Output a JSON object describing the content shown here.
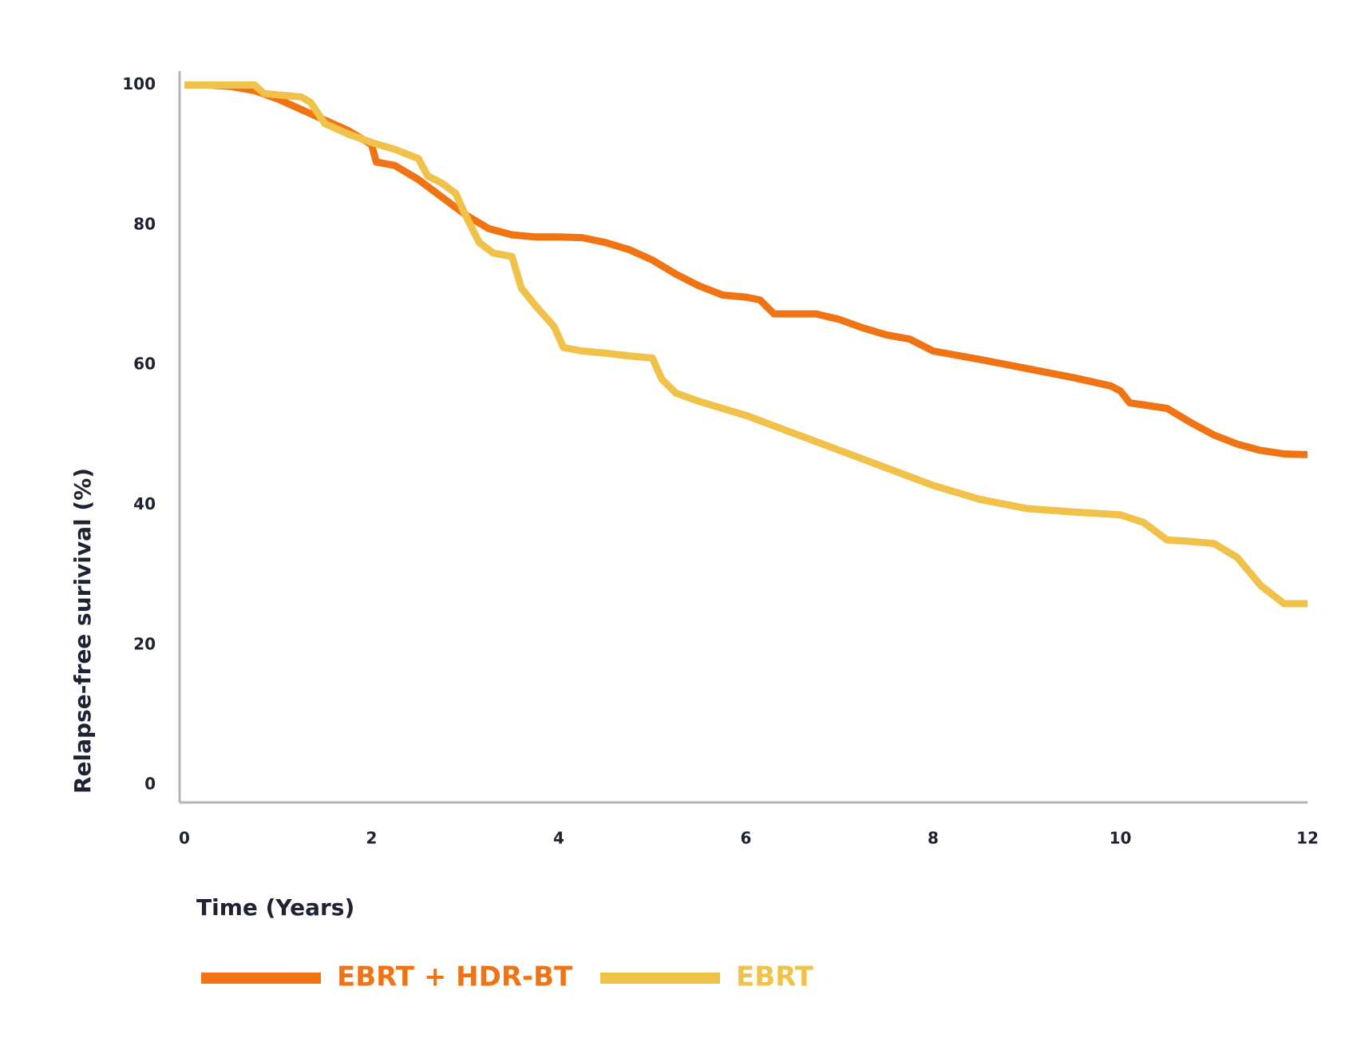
{
  "chart_data": {
    "type": "line",
    "xlabel": "Time (Years)",
    "ylabel": "Relapse-free surivival (%)",
    "xlim": [
      0,
      12
    ],
    "xticks": [
      0,
      2,
      4,
      6,
      8,
      10,
      12
    ],
    "ylim": [
      -2.5,
      102
    ],
    "yticks": [
      0,
      20,
      40,
      60,
      80,
      100
    ],
    "grid": false,
    "series": [
      {
        "name": "EBRT + HDR-BT",
        "color": "#f07314",
        "x": [
          0,
          0.25,
          0.5,
          0.75,
          1,
          1.25,
          1.5,
          1.75,
          2,
          2.05,
          2.25,
          2.5,
          2.75,
          3,
          3.25,
          3.5,
          3.75,
          4,
          4.25,
          4.5,
          4.75,
          5,
          5.25,
          5.5,
          5.75,
          6,
          6.15,
          6.3,
          6.5,
          6.75,
          7,
          7.25,
          7.5,
          7.75,
          8,
          8.5,
          9,
          9.5,
          9.9,
          10,
          10.1,
          10.25,
          10.5,
          10.75,
          11,
          11.25,
          11.5,
          11.75,
          12
        ],
        "values": [
          100,
          100,
          99.8,
          99.2,
          98,
          96.5,
          95,
          93.5,
          91.5,
          89,
          88.5,
          86.5,
          84,
          81.5,
          79.5,
          78.6,
          78.3,
          78.3,
          78.2,
          77.5,
          76.5,
          75,
          73,
          71.3,
          70,
          69.7,
          69.3,
          67.3,
          67.3,
          67.3,
          66.5,
          65.3,
          64.3,
          63.7,
          62,
          60.8,
          59.5,
          58.2,
          57,
          56.3,
          54.6,
          54.3,
          53.8,
          51.8,
          50,
          48.7,
          47.8,
          47.3,
          47.2
        ]
      },
      {
        "name": "EBRT",
        "color": "#f0c24a",
        "x": [
          0,
          0.25,
          0.5,
          0.75,
          0.85,
          1,
          1.25,
          1.35,
          1.5,
          1.75,
          2,
          2.25,
          2.5,
          2.6,
          2.75,
          2.9,
          3,
          3.15,
          3.3,
          3.5,
          3.6,
          3.75,
          3.95,
          4.05,
          4.25,
          4.5,
          4.75,
          5,
          5.1,
          5.25,
          5.5,
          6,
          6.5,
          7,
          7.5,
          8,
          8.5,
          9,
          9.5,
          10,
          10.25,
          10.5,
          10.75,
          11,
          11.25,
          11.5,
          11.75,
          12
        ],
        "values": [
          100,
          100,
          100,
          100,
          98.8,
          98.6,
          98.3,
          97.5,
          94.5,
          93,
          91.8,
          90.8,
          89.5,
          87,
          86,
          84.5,
          81.5,
          77.5,
          76,
          75.5,
          71,
          68.5,
          65.5,
          62.5,
          62,
          61.7,
          61.3,
          61,
          58,
          56,
          54.8,
          52.8,
          50.3,
          47.8,
          45.3,
          42.8,
          40.8,
          39.5,
          39,
          38.6,
          37.5,
          35,
          34.8,
          34.5,
          32.5,
          28.5,
          25.9,
          25.9
        ]
      }
    ]
  }
}
